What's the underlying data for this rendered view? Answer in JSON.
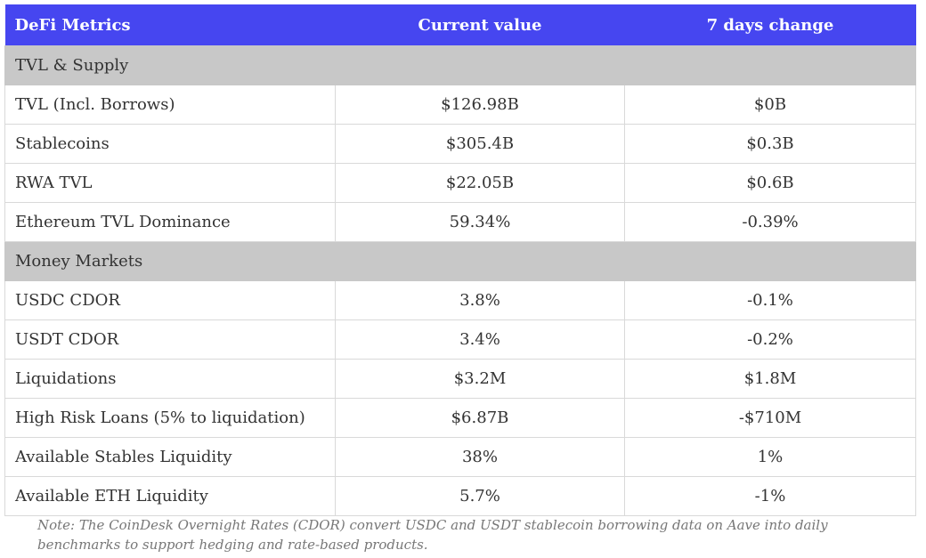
{
  "table": {
    "header": [
      "DeFi Metrics",
      "Current value",
      "7 days change"
    ],
    "sections": [
      {
        "title": "TVL & Supply",
        "rows": [
          [
            "TVL (Incl. Borrows)",
            "$126.98B",
            "$0B"
          ],
          [
            "Stablecoins",
            "$305.4B",
            "$0.3B"
          ],
          [
            "RWA TVL",
            "$22.05B",
            "$0.6B"
          ],
          [
            "Ethereum TVL Dominance",
            "59.34%",
            "-0.39%"
          ]
        ]
      },
      {
        "title": "Money Markets",
        "rows": [
          [
            "USDC CDOR",
            "3.8%",
            "-0.1%"
          ],
          [
            "USDT CDOR",
            "3.4%",
            "-0.2%"
          ],
          [
            "Liquidations",
            "$3.2M",
            "$1.8M"
          ],
          [
            "High Risk Loans (5% to liquidation)",
            "$6.87B",
            "-$710M"
          ],
          [
            "Available Stables Liquidity",
            "38%",
            "1%"
          ],
          [
            "Available ETH Liquidity",
            "5.7%",
            "-1%"
          ]
        ]
      }
    ]
  },
  "note": "Note: The CoinDesk Overnight Rates (CDOR) convert USDC and USDT stablecoin borrowing data on Aave into daily benchmarks to support hedging and rate-based products."
}
